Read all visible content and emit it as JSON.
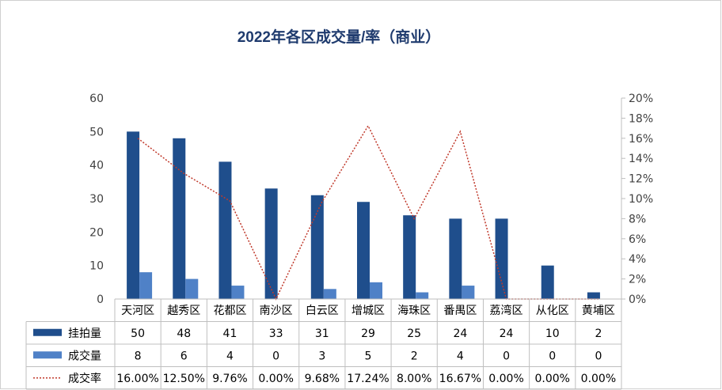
{
  "chart_data": {
    "type": "bar",
    "title": "2022年各区成交量/率（商业）",
    "categories": [
      "天河区",
      "越秀区",
      "花都区",
      "南沙区",
      "白云区",
      "增城区",
      "海珠区",
      "番禺区",
      "荔湾区",
      "从化区",
      "黄埔区"
    ],
    "series": [
      {
        "name": "挂拍量",
        "type": "bar",
        "axis": "left",
        "values": [
          50,
          48,
          41,
          33,
          31,
          29,
          25,
          24,
          24,
          10,
          2
        ],
        "labels": [
          "50",
          "48",
          "41",
          "33",
          "31",
          "29",
          "25",
          "24",
          "24",
          "10",
          "2"
        ]
      },
      {
        "name": "成交量",
        "type": "bar",
        "axis": "left",
        "values": [
          8,
          6,
          4,
          0,
          3,
          5,
          2,
          4,
          0,
          0,
          0
        ],
        "labels": [
          "8",
          "6",
          "4",
          "0",
          "3",
          "5",
          "2",
          "4",
          "0",
          "0",
          "0"
        ]
      },
      {
        "name": "成交率",
        "type": "line",
        "axis": "right",
        "values": [
          16.0,
          12.5,
          9.76,
          0.0,
          9.68,
          17.24,
          8.0,
          16.67,
          0.0,
          0.0,
          0.0
        ],
        "labels": [
          "16.00%",
          "12.50%",
          "9.76%",
          "0.00%",
          "9.68%",
          "17.24%",
          "8.00%",
          "16.67%",
          "0.00%",
          "0.00%",
          "0.00%"
        ]
      }
    ],
    "y_left": {
      "min": 0,
      "max": 60,
      "step": 10,
      "tick_labels": [
        "0",
        "10",
        "20",
        "30",
        "40",
        "50",
        "60"
      ]
    },
    "y_right": {
      "min": 0,
      "max": 20,
      "step": 2,
      "tick_labels": [
        "0%",
        "2%",
        "4%",
        "6%",
        "8%",
        "10%",
        "12%",
        "14%",
        "16%",
        "18%",
        "20%"
      ]
    },
    "grid": false,
    "legend": "data-table"
  },
  "colors": {
    "bar1": "#1f4e8c",
    "bar2": "#4f81c7",
    "line": "#c0392b",
    "title": "#1f3b6e"
  }
}
